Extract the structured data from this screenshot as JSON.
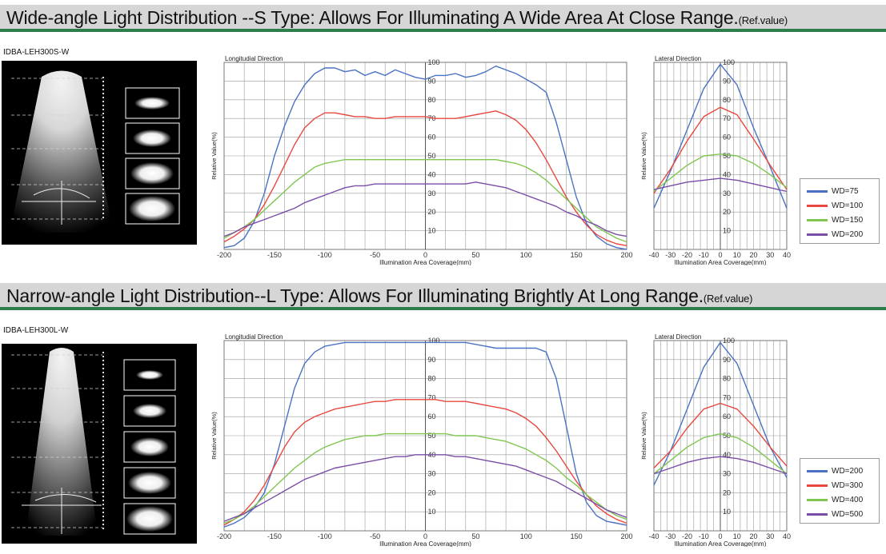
{
  "sections": [
    {
      "title": "Wide-angle Light Distribution --S Type: Allows For Illuminating A Wide Area At Close Range.",
      "ref": "(Ref.value)",
      "model": "IDBA-LEH300S-W",
      "legend": [
        "WD=75",
        "WD=100",
        "WD=150",
        "WD=200"
      ]
    },
    {
      "title": "Narrow-angle Light Distribution--L Type: Allows For Illuminating  Brightly At Long  Range.",
      "ref": "(Ref.value)",
      "model": "IDBA-LEH300L-W",
      "legend": [
        "WD=200",
        "WD=300",
        "WD=400",
        "WD=500"
      ]
    }
  ],
  "colors": {
    "series": [
      "#4a72c4",
      "#e8483f",
      "#7fc650",
      "#7a4ea6"
    ],
    "accent": "#2e7d4a",
    "grid": "#9a9a9a"
  },
  "chart_data": [
    {
      "type": "line",
      "title": "Longitudial Direction",
      "xlabel": "Illumination Area Coverage(mm)",
      "ylabel": "Relative Value(%)",
      "xlim": [
        -200,
        200
      ],
      "ylim": [
        0,
        100
      ],
      "xticks": [
        -200,
        -150,
        -100,
        -50,
        0,
        50,
        100,
        150,
        200
      ],
      "yticks": [
        10,
        20,
        30,
        40,
        50,
        60,
        70,
        80,
        90,
        100
      ],
      "series": [
        {
          "name": "WD=75",
          "x": [
            -200,
            -190,
            -180,
            -170,
            -160,
            -150,
            -140,
            -130,
            -120,
            -110,
            -100,
            -90,
            -80,
            -70,
            -60,
            -50,
            -40,
            -30,
            -20,
            -10,
            0,
            10,
            20,
            30,
            40,
            50,
            60,
            70,
            80,
            90,
            100,
            110,
            120,
            130,
            140,
            150,
            160,
            170,
            180,
            190,
            200
          ],
          "y": [
            1,
            2,
            6,
            15,
            30,
            50,
            66,
            79,
            88,
            94,
            97,
            97,
            95,
            96,
            93,
            95,
            93,
            96,
            94,
            92,
            91,
            93,
            93,
            94,
            92,
            93,
            95,
            98,
            96,
            94,
            91,
            88,
            84,
            68,
            48,
            28,
            14,
            7,
            3,
            1,
            0
          ]
        },
        {
          "name": "WD=100",
          "x": [
            -200,
            -190,
            -180,
            -170,
            -160,
            -150,
            -140,
            -130,
            -120,
            -110,
            -100,
            -90,
            -80,
            -70,
            -60,
            -50,
            -40,
            -30,
            -20,
            -10,
            0,
            10,
            20,
            30,
            40,
            50,
            60,
            70,
            80,
            90,
            100,
            110,
            120,
            130,
            140,
            150,
            160,
            170,
            180,
            190,
            200
          ],
          "y": [
            4,
            7,
            11,
            16,
            24,
            34,
            45,
            56,
            65,
            70,
            73,
            73,
            72,
            71,
            71,
            70,
            70,
            71,
            71,
            71,
            71,
            70,
            70,
            70,
            71,
            72,
            73,
            74,
            72,
            69,
            64,
            57,
            48,
            38,
            28,
            20,
            13,
            8,
            5,
            3,
            2
          ]
        },
        {
          "name": "WD=150",
          "x": [
            -200,
            -190,
            -180,
            -170,
            -160,
            -150,
            -140,
            -130,
            -120,
            -110,
            -100,
            -90,
            -80,
            -70,
            -60,
            -50,
            -40,
            -30,
            -20,
            -10,
            0,
            10,
            20,
            30,
            40,
            50,
            60,
            70,
            80,
            90,
            100,
            110,
            120,
            130,
            140,
            150,
            160,
            170,
            180,
            190,
            200
          ],
          "y": [
            6,
            9,
            12,
            16,
            21,
            26,
            31,
            36,
            40,
            44,
            46,
            47,
            48,
            48,
            48,
            48,
            48,
            48,
            48,
            48,
            48,
            48,
            48,
            48,
            48,
            48,
            48,
            48,
            47,
            46,
            44,
            41,
            37,
            32,
            27,
            22,
            17,
            12,
            9,
            6,
            4
          ]
        },
        {
          "name": "WD=200",
          "x": [
            -200,
            -190,
            -180,
            -170,
            -160,
            -150,
            -140,
            -130,
            -120,
            -110,
            -100,
            -90,
            -80,
            -70,
            -60,
            -50,
            -40,
            -30,
            -20,
            -10,
            0,
            10,
            20,
            30,
            40,
            50,
            60,
            70,
            80,
            90,
            100,
            110,
            120,
            130,
            140,
            150,
            160,
            170,
            180,
            190,
            200
          ],
          "y": [
            7,
            9,
            12,
            14,
            16,
            18,
            20,
            22,
            25,
            27,
            29,
            31,
            33,
            34,
            34,
            35,
            35,
            35,
            35,
            35,
            35,
            35,
            35,
            35,
            35,
            36,
            35,
            34,
            33,
            31,
            29,
            27,
            25,
            23,
            20,
            18,
            15,
            13,
            10,
            8,
            7
          ]
        }
      ]
    },
    {
      "type": "line",
      "title": "Lateral Direction",
      "xlabel": "Illumination Area Coverage(mm)",
      "ylabel": "Relative Value(%)",
      "xlim": [
        -40,
        40
      ],
      "ylim": [
        0,
        100
      ],
      "xticks": [
        -40,
        -30,
        -20,
        -10,
        0,
        10,
        20,
        30,
        40
      ],
      "yticks": [
        10,
        20,
        30,
        40,
        50,
        60,
        70,
        80,
        90,
        100
      ],
      "series": [
        {
          "name": "WD=75",
          "x": [
            -40,
            -30,
            -20,
            -10,
            0,
            10,
            20,
            30,
            40
          ],
          "y": [
            22,
            42,
            64,
            86,
            99,
            88,
            65,
            44,
            22
          ]
        },
        {
          "name": "WD=100",
          "x": [
            -40,
            -30,
            -20,
            -10,
            0,
            10,
            20,
            30,
            40
          ],
          "y": [
            30,
            43,
            58,
            71,
            76,
            72,
            59,
            45,
            32
          ]
        },
        {
          "name": "WD=150",
          "x": [
            -40,
            -30,
            -20,
            -10,
            0,
            10,
            20,
            30,
            40
          ],
          "y": [
            31,
            38,
            45,
            50,
            51,
            50,
            46,
            40,
            33
          ]
        },
        {
          "name": "WD=200",
          "x": [
            -40,
            -30,
            -20,
            -10,
            0,
            10,
            20,
            30,
            40
          ],
          "y": [
            32,
            34,
            36,
            37,
            38,
            37,
            35,
            33,
            31
          ]
        }
      ]
    },
    {
      "type": "line",
      "title": "Longitudial Direction",
      "xlabel": "Illumination Area Coverage(mm)",
      "ylabel": "Relative Value(%)",
      "xlim": [
        -200,
        200
      ],
      "ylim": [
        0,
        100
      ],
      "xticks": [
        -200,
        -150,
        -100,
        -50,
        0,
        50,
        100,
        150,
        200
      ],
      "yticks": [
        10,
        20,
        30,
        40,
        50,
        60,
        70,
        80,
        90,
        100
      ],
      "series": [
        {
          "name": "WD=200",
          "x": [
            -200,
            -190,
            -180,
            -170,
            -160,
            -150,
            -140,
            -130,
            -120,
            -110,
            -100,
            -90,
            -80,
            -70,
            -60,
            -50,
            -40,
            -30,
            -20,
            -10,
            0,
            10,
            20,
            30,
            40,
            50,
            60,
            70,
            80,
            90,
            100,
            110,
            120,
            130,
            140,
            150,
            160,
            170,
            180,
            190,
            200
          ],
          "y": [
            2,
            4,
            7,
            12,
            20,
            35,
            55,
            75,
            88,
            94,
            97,
            98,
            99,
            99,
            99,
            99,
            99,
            99,
            99,
            99,
            99,
            99,
            99,
            99,
            99,
            98,
            97,
            96,
            96,
            96,
            96,
            96,
            94,
            80,
            55,
            30,
            15,
            8,
            5,
            4,
            3
          ]
        },
        {
          "name": "WD=300",
          "x": [
            -200,
            -190,
            -180,
            -170,
            -160,
            -150,
            -140,
            -130,
            -120,
            -110,
            -100,
            -90,
            -80,
            -70,
            -60,
            -50,
            -40,
            -30,
            -20,
            -10,
            0,
            10,
            20,
            30,
            40,
            50,
            60,
            70,
            80,
            90,
            100,
            110,
            120,
            130,
            140,
            150,
            160,
            170,
            180,
            190,
            200
          ],
          "y": [
            3,
            6,
            10,
            16,
            24,
            34,
            44,
            52,
            57,
            60,
            62,
            64,
            65,
            66,
            67,
            68,
            68,
            69,
            69,
            69,
            69,
            69,
            68,
            68,
            68,
            67,
            66,
            65,
            64,
            62,
            59,
            55,
            49,
            42,
            34,
            26,
            19,
            13,
            9,
            6,
            4
          ]
        },
        {
          "name": "WD=400",
          "x": [
            -200,
            -190,
            -180,
            -170,
            -160,
            -150,
            -140,
            -130,
            -120,
            -110,
            -100,
            -90,
            -80,
            -70,
            -60,
            -50,
            -40,
            -30,
            -20,
            -10,
            0,
            10,
            20,
            30,
            40,
            50,
            60,
            70,
            80,
            90,
            100,
            110,
            120,
            130,
            140,
            150,
            160,
            170,
            180,
            190,
            200
          ],
          "y": [
            4,
            6,
            9,
            13,
            18,
            23,
            28,
            33,
            37,
            41,
            44,
            46,
            48,
            49,
            50,
            50,
            51,
            51,
            51,
            51,
            51,
            51,
            51,
            50,
            50,
            50,
            49,
            48,
            47,
            45,
            43,
            40,
            37,
            33,
            28,
            24,
            19,
            15,
            11,
            8,
            6
          ]
        },
        {
          "name": "WD=500",
          "x": [
            -200,
            -190,
            -180,
            -170,
            -160,
            -150,
            -140,
            -130,
            -120,
            -110,
            -100,
            -90,
            -80,
            -70,
            -60,
            -50,
            -40,
            -30,
            -20,
            -10,
            0,
            10,
            20,
            30,
            40,
            50,
            60,
            70,
            80,
            90,
            100,
            110,
            120,
            130,
            140,
            150,
            160,
            170,
            180,
            190,
            200
          ],
          "y": [
            5,
            7,
            9,
            12,
            15,
            18,
            21,
            24,
            27,
            29,
            31,
            33,
            34,
            35,
            36,
            37,
            38,
            39,
            39,
            40,
            40,
            40,
            40,
            39,
            39,
            38,
            37,
            36,
            35,
            34,
            32,
            30,
            28,
            26,
            23,
            20,
            17,
            14,
            11,
            9,
            7
          ]
        }
      ]
    },
    {
      "type": "line",
      "title": "Lateral Direction",
      "xlabel": "Illumination Area Coverage(mm)",
      "ylabel": "Relative Value(%)",
      "xlim": [
        -40,
        40
      ],
      "ylim": [
        0,
        100
      ],
      "xticks": [
        -40,
        -30,
        -20,
        -10,
        0,
        10,
        20,
        30,
        40
      ],
      "yticks": [
        10,
        20,
        30,
        40,
        50,
        60,
        70,
        80,
        90,
        100
      ],
      "series": [
        {
          "name": "WD=200",
          "x": [
            -40,
            -30,
            -20,
            -10,
            0,
            10,
            20,
            30,
            40
          ],
          "y": [
            24,
            42,
            64,
            86,
            99,
            88,
            66,
            44,
            28
          ]
        },
        {
          "name": "WD=300",
          "x": [
            -40,
            -30,
            -20,
            -10,
            0,
            10,
            20,
            30,
            40
          ],
          "y": [
            33,
            42,
            54,
            64,
            67,
            64,
            55,
            44,
            34
          ]
        },
        {
          "name": "WD=400",
          "x": [
            -40,
            -30,
            -20,
            -10,
            0,
            10,
            20,
            30,
            40
          ],
          "y": [
            30,
            37,
            44,
            49,
            51,
            49,
            44,
            37,
            30
          ]
        },
        {
          "name": "WD=500",
          "x": [
            -40,
            -30,
            -20,
            -10,
            0,
            10,
            20,
            30,
            40
          ],
          "y": [
            30,
            33,
            36,
            38,
            39,
            38,
            36,
            33,
            30
          ]
        }
      ]
    }
  ]
}
